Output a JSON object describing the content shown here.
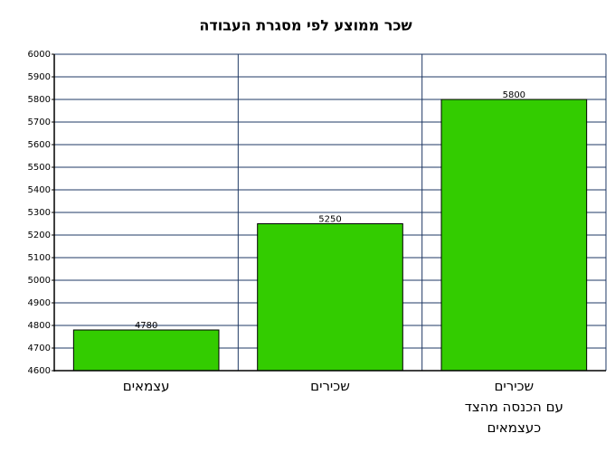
{
  "chart_data": {
    "type": "bar",
    "title": "שכר ממוצע לפי מסגרת העבודה",
    "categories": [
      "עצמאים",
      "שכירים",
      "שכירים\nעם הכנסה מהצד\nכעצמאים"
    ],
    "values": [
      4780,
      5250,
      5800
    ],
    "color": "#33cc00",
    "ylim": [
      4600,
      6000
    ],
    "yticks": [
      4600,
      4700,
      4800,
      4900,
      5000,
      5100,
      5200,
      5300,
      5400,
      5500,
      5600,
      5700,
      5800,
      5900,
      6000
    ],
    "grid": true
  }
}
